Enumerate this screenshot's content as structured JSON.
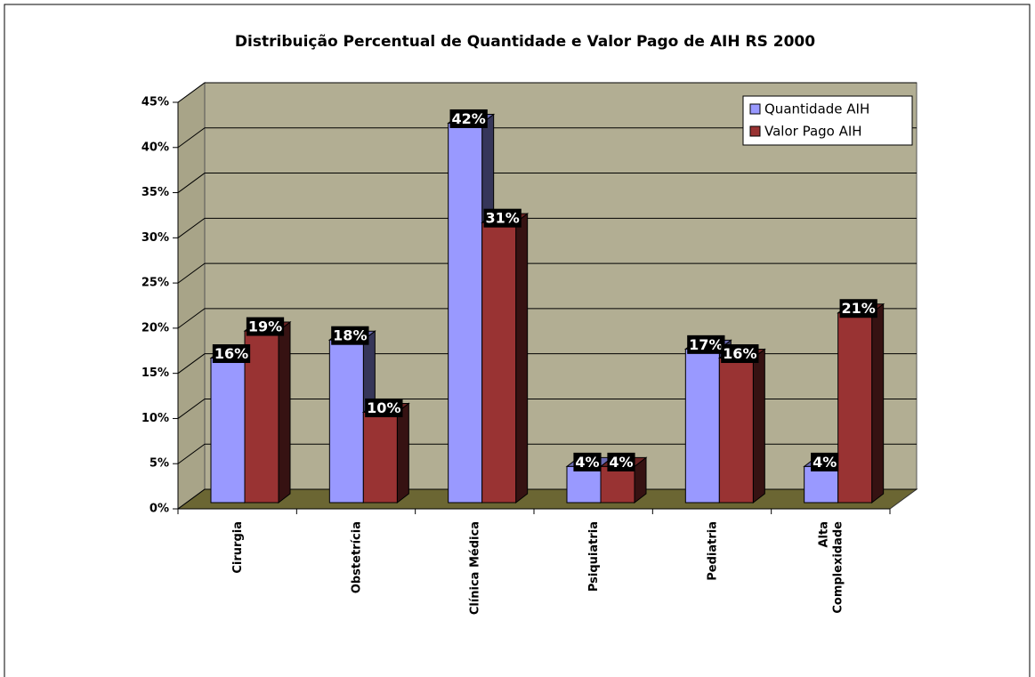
{
  "chart_data": {
    "type": "bar3d",
    "title": "Distribuição Percentual de Quantidade e Valor Pago de AIH RS 2000",
    "categories": [
      "Cirurgia",
      "Obstetrícia",
      "Clínica Médica",
      "Psiquiatria",
      "Pediatria",
      "Alta Complexidade"
    ],
    "series": [
      {
        "name": "Quantidade AIH",
        "color": "#9999ff",
        "values": [
          16,
          18,
          42,
          4,
          17,
          4
        ],
        "value_labels": [
          "16%",
          "18%",
          "42%",
          "4%",
          "17%",
          "4%"
        ]
      },
      {
        "name": "Valor Pago AIH",
        "color": "#993333",
        "values": [
          19,
          10,
          31,
          4,
          16,
          21
        ],
        "value_labels": [
          "19%",
          "10%",
          "31%",
          "4%",
          "16%",
          "21%"
        ]
      }
    ],
    "ylim": [
      0,
      45
    ],
    "yticks": [
      {
        "value": 0,
        "label": "0%"
      },
      {
        "value": 5,
        "label": "5%"
      },
      {
        "value": 10,
        "label": "10%"
      },
      {
        "value": 15,
        "label": "15%"
      },
      {
        "value": 20,
        "label": "20%"
      },
      {
        "value": 25,
        "label": "25%"
      },
      {
        "value": 30,
        "label": "30%"
      },
      {
        "value": 35,
        "label": "35%"
      },
      {
        "value": 40,
        "label": "40%"
      },
      {
        "value": 45,
        "label": "45%"
      }
    ],
    "grid": true,
    "legend": "top-right"
  }
}
